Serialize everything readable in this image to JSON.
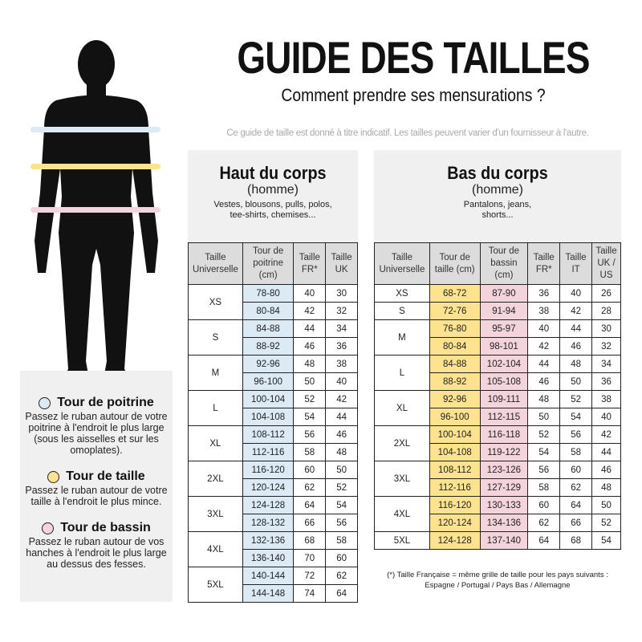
{
  "title": "GUIDE DES TAILLES",
  "subtitle": "Comment prendre ses mensurations ?",
  "disclaimer": "Ce guide de taille est donné à titre indicatif. Les tailles peuvent varier d'un fournisseur à l'autre.",
  "colors": {
    "chest": "#dceaf6",
    "waist": "#fde38f",
    "hips": "#f3d3dc"
  },
  "legend": [
    {
      "title": "Tour de poitrine",
      "text": "Passez le ruban autour de votre poitrine à l'endroit le plus large (sous les aisselles et sur les omoplates).",
      "color": "#dceaf6"
    },
    {
      "title": "Tour de taille",
      "text": "Passez le ruban autour de votre taille à l'endroit le plus mince.",
      "color": "#fde38f"
    },
    {
      "title": "Tour de bassin",
      "text": "Passez le ruban autour de vos hanches à l'endroit le plus large au dessus des fesses.",
      "color": "#f3d3dc"
    }
  ],
  "top": {
    "heading": "Haut du corps",
    "sub": "(homme)",
    "desc": "Vestes, blousons, pulls, polos, tee-shirts, chemises...",
    "headers": [
      "Taille Universelle",
      "Tour de poitrine (cm)",
      "Taille FR*",
      "Taille UK"
    ],
    "groups": [
      {
        "size": "XS",
        "rows": [
          [
            "78-80",
            "40",
            "30"
          ],
          [
            "80-84",
            "42",
            "32"
          ]
        ]
      },
      {
        "size": "S",
        "rows": [
          [
            "84-88",
            "44",
            "34"
          ],
          [
            "88-92",
            "46",
            "36"
          ]
        ]
      },
      {
        "size": "M",
        "rows": [
          [
            "92-96",
            "48",
            "38"
          ],
          [
            "96-100",
            "50",
            "40"
          ]
        ]
      },
      {
        "size": "L",
        "rows": [
          [
            "100-104",
            "52",
            "42"
          ],
          [
            "104-108",
            "54",
            "44"
          ]
        ]
      },
      {
        "size": "XL",
        "rows": [
          [
            "108-112",
            "56",
            "46"
          ],
          [
            "112-116",
            "58",
            "48"
          ]
        ]
      },
      {
        "size": "2XL",
        "rows": [
          [
            "116-120",
            "60",
            "50"
          ],
          [
            "120-124",
            "62",
            "52"
          ]
        ]
      },
      {
        "size": "3XL",
        "rows": [
          [
            "124-128",
            "64",
            "54"
          ],
          [
            "128-132",
            "66",
            "56"
          ]
        ]
      },
      {
        "size": "4XL",
        "rows": [
          [
            "132-136",
            "68",
            "58"
          ],
          [
            "136-140",
            "70",
            "60"
          ]
        ]
      },
      {
        "size": "5XL",
        "rows": [
          [
            "140-144",
            "72",
            "62"
          ],
          [
            "144-148",
            "74",
            "64"
          ]
        ]
      }
    ]
  },
  "bottom": {
    "heading": "Bas du corps",
    "sub": "(homme)",
    "desc": "Pantalons, jeans, shorts...",
    "headers": [
      "Taille Universelle",
      "Tour de taille (cm)",
      "Tour de bassin (cm)",
      "Taille FR*",
      "Taille IT",
      "Taille UK / US"
    ],
    "groups": [
      {
        "size": "XS",
        "rows": [
          [
            "68-72",
            "87-90",
            "36",
            "40",
            "26"
          ]
        ]
      },
      {
        "size": "S",
        "rows": [
          [
            "72-76",
            "91-94",
            "38",
            "42",
            "28"
          ]
        ]
      },
      {
        "size": "M",
        "rows": [
          [
            "76-80",
            "95-97",
            "40",
            "44",
            "30"
          ],
          [
            "80-84",
            "98-101",
            "42",
            "46",
            "32"
          ]
        ]
      },
      {
        "size": "L",
        "rows": [
          [
            "84-88",
            "102-104",
            "44",
            "48",
            "34"
          ],
          [
            "88-92",
            "105-108",
            "46",
            "50",
            "36"
          ]
        ]
      },
      {
        "size": "XL",
        "rows": [
          [
            "92-96",
            "109-111",
            "48",
            "52",
            "38"
          ],
          [
            "96-100",
            "112-115",
            "50",
            "54",
            "40"
          ]
        ]
      },
      {
        "size": "2XL",
        "rows": [
          [
            "100-104",
            "116-118",
            "52",
            "56",
            "42"
          ],
          [
            "104-108",
            "119-122",
            "54",
            "58",
            "44"
          ]
        ]
      },
      {
        "size": "3XL",
        "rows": [
          [
            "108-112",
            "123-126",
            "56",
            "60",
            "46"
          ],
          [
            "112-116",
            "127-129",
            "58",
            "62",
            "48"
          ]
        ]
      },
      {
        "size": "4XL",
        "rows": [
          [
            "116-120",
            "130-133",
            "60",
            "64",
            "50"
          ],
          [
            "120-124",
            "134-136",
            "62",
            "66",
            "52"
          ]
        ]
      },
      {
        "size": "5XL",
        "rows": [
          [
            "124-128",
            "137-140",
            "64",
            "68",
            "54"
          ]
        ]
      }
    ]
  },
  "footnote": "(*) Taille Française = même grille de taille pour les pays suivants : Espagne / Portugal / Pays Bas / Allemagne"
}
